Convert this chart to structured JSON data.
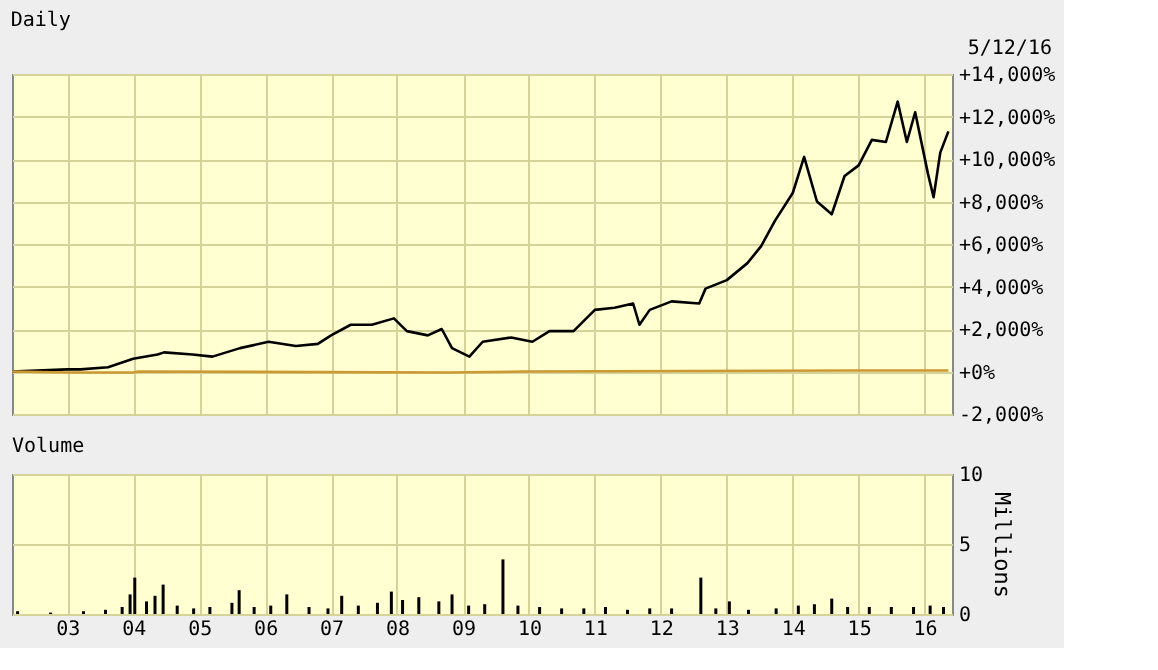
{
  "chart_data": [
    {
      "type": "line",
      "title": "Daily",
      "annotations": [
        "5/12/16"
      ],
      "grid": true,
      "tick_labels": "y",
      "legend": false,
      "line_style": "solid",
      "marker": "none",
      "xlim": [
        "2002-03-01",
        "2016-06-01"
      ],
      "xticks": [
        {
          "value": "2003",
          "label": null
        },
        {
          "value": "2004",
          "label": null
        },
        {
          "value": "2005",
          "label": null
        },
        {
          "value": "2006",
          "label": null
        },
        {
          "value": "2007",
          "label": null
        },
        {
          "value": "2008",
          "label": null
        },
        {
          "value": "2009",
          "label": null
        },
        {
          "value": "2010",
          "label": null
        },
        {
          "value": "2011",
          "label": null
        },
        {
          "value": "2012",
          "label": null
        },
        {
          "value": "2013",
          "label": null
        },
        {
          "value": "2014",
          "label": null
        },
        {
          "value": "2015",
          "label": null
        },
        {
          "value": "2016",
          "label": null
        }
      ],
      "ylim": [
        -2000,
        14000
      ],
      "yticks": [
        {
          "value": -2000,
          "label": "-2,000%"
        },
        {
          "value": 0,
          "label": "+0%"
        },
        {
          "value": 2000,
          "label": "+2,000%"
        },
        {
          "value": 4000,
          "label": "+4,000%"
        },
        {
          "value": 6000,
          "label": "+6,000%"
        },
        {
          "value": 8000,
          "label": "+8,000%"
        },
        {
          "value": 10000,
          "label": "+10,000%"
        },
        {
          "value": 12000,
          "label": "+12,000%"
        },
        {
          "value": 14000,
          "label": "+14,000%"
        }
      ],
      "series": [
        {
          "color": "#000000",
          "x": [
            "2002-03-01",
            "2003-01-01",
            "2003-03-15",
            "2003-08-15",
            "2004-01-01",
            "2004-05-15",
            "2004-06-20",
            "2004-11-25",
            "2005-03-15",
            "2005-08-15",
            "2006-01-20",
            "2006-06-20",
            "2006-10-20",
            "2007-01-01",
            "2007-04-20",
            "2007-08-15",
            "2007-12-15",
            "2008-02-25",
            "2008-06-20",
            "2008-09-05",
            "2008-11-01",
            "2009-02-05",
            "2009-04-20",
            "2009-09-25",
            "2010-01-20",
            "2010-04-25",
            "2010-09-05",
            "2011-01-01",
            "2011-04-20",
            "2011-08-01",
            "2011-09-05",
            "2011-11-01",
            "2012-03-01",
            "2012-08-01",
            "2012-09-05",
            "2013-01-01",
            "2013-04-25",
            "2013-07-10",
            "2013-09-25",
            "2014-01-01",
            "2014-03-05",
            "2014-05-15",
            "2014-08-05",
            "2014-10-15",
            "2015-01-01",
            "2015-03-15",
            "2015-06-01",
            "2015-08-05",
            "2015-09-25",
            "2015-11-10",
            "2016-01-20",
            "2016-02-20",
            "2016-03-28",
            "2016-05-12"
          ],
          "values": [
            0,
            100,
            100,
            200,
            600,
            800,
            900,
            800,
            700,
            1100,
            1400,
            1200,
            1300,
            1700,
            2200,
            2200,
            2500,
            1900,
            1700,
            2000,
            1100,
            700,
            1400,
            1600,
            1400,
            1900,
            1900,
            2900,
            3000,
            3200,
            2200,
            2900,
            3300,
            3200,
            3900,
            4300,
            5100,
            5900,
            7100,
            8400,
            10100,
            8000,
            7400,
            9200,
            9700,
            10900,
            10800,
            12700,
            10800,
            12200,
            9300,
            8200,
            10300,
            11300
          ]
        },
        {
          "color": "#cc9933",
          "x": [
            "2002-03-01",
            "2003-01-01",
            "2004-01-01",
            "2004-02-01",
            "2008-10-15",
            "2009-12-01",
            "2014-12-01",
            "2016-05-12"
          ],
          "values": [
            0,
            -50,
            -50,
            0,
            -50,
            0,
            50,
            50
          ]
        }
      ]
    },
    {
      "type": "bar",
      "title": "Volume",
      "ylabel": "Millions",
      "grid": true,
      "legend": false,
      "xlim": [
        "2002-03-01",
        "2016-06-01"
      ],
      "xticks": [
        {
          "value": "2003",
          "label": "03"
        },
        {
          "value": "2004",
          "label": "04"
        },
        {
          "value": "2005",
          "label": "05"
        },
        {
          "value": "2006",
          "label": "06"
        },
        {
          "value": "2007",
          "label": "07"
        },
        {
          "value": "2008",
          "label": "08"
        },
        {
          "value": "2009",
          "label": "09"
        },
        {
          "value": "2010",
          "label": "10"
        },
        {
          "value": "2011",
          "label": "11"
        },
        {
          "value": "2012",
          "label": "12"
        },
        {
          "value": "2013",
          "label": "13"
        },
        {
          "value": "2014",
          "label": "14"
        },
        {
          "value": "2015",
          "label": "15"
        },
        {
          "value": "2016",
          "label": "16"
        }
      ],
      "ylim": [
        0,
        10
      ],
      "yticks": [
        0,
        5,
        10
      ],
      "series": [
        {
          "color": "#000000",
          "x": [
            "2002-04-01",
            "2002-10-01",
            "2003-04-01",
            "2003-08-01",
            "2003-11-01",
            "2003-12-15",
            "2004-01-10",
            "2004-03-15",
            "2004-05-01",
            "2004-06-15",
            "2004-09-01",
            "2004-12-01",
            "2005-03-01",
            "2005-07-01",
            "2005-08-10",
            "2005-11-01",
            "2006-02-01",
            "2006-05-01",
            "2006-09-01",
            "2006-12-15",
            "2007-03-01",
            "2007-06-01",
            "2007-09-15",
            "2007-12-01",
            "2008-02-01",
            "2008-05-01",
            "2008-08-20",
            "2008-11-01",
            "2009-02-01",
            "2009-05-01",
            "2009-08-10",
            "2009-11-01",
            "2010-03-01",
            "2010-07-01",
            "2010-11-01",
            "2011-03-01",
            "2011-07-01",
            "2011-11-01",
            "2012-03-01",
            "2012-08-10",
            "2012-11-01",
            "2013-01-15",
            "2013-05-01",
            "2013-10-01",
            "2014-02-01",
            "2014-05-01",
            "2014-08-05",
            "2014-11-01",
            "2015-03-01",
            "2015-07-01",
            "2015-11-01",
            "2016-02-01",
            "2016-04-15"
          ],
          "values": [
            0.2,
            0.1,
            0.2,
            0.3,
            0.5,
            1.4,
            2.6,
            0.9,
            1.3,
            2.1,
            0.6,
            0.4,
            0.5,
            0.8,
            1.7,
            0.5,
            0.6,
            1.4,
            0.5,
            0.4,
            1.3,
            0.6,
            0.8,
            1.6,
            1.0,
            1.2,
            0.9,
            1.4,
            0.6,
            0.7,
            3.9,
            0.6,
            0.5,
            0.4,
            0.4,
            0.5,
            0.3,
            0.4,
            0.4,
            2.6,
            0.4,
            0.9,
            0.3,
            0.4,
            0.6,
            0.7,
            1.1,
            0.5,
            0.5,
            0.5,
            0.5,
            0.6,
            0.5
          ]
        }
      ]
    }
  ]
}
